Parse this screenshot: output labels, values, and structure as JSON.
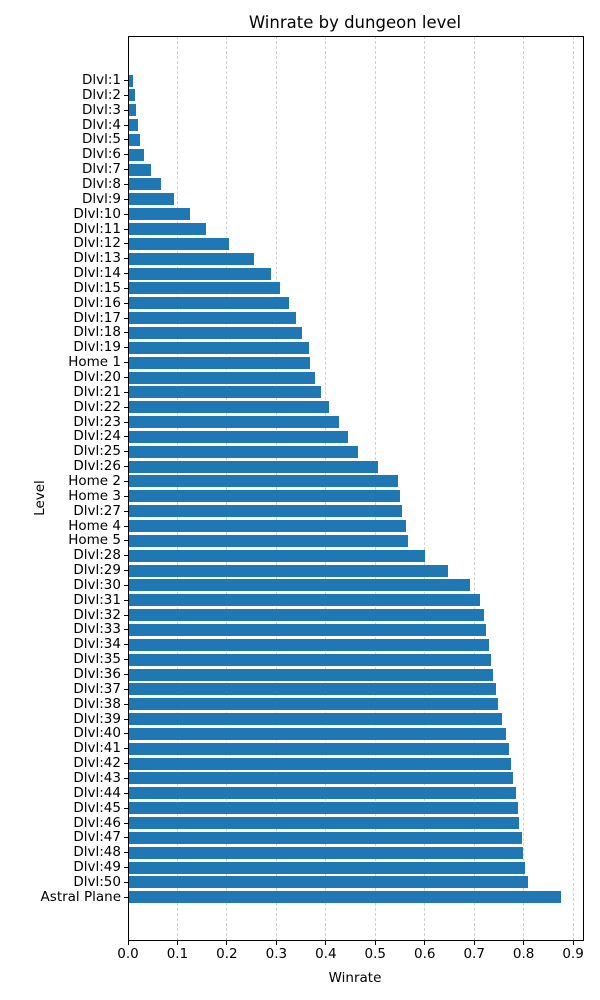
{
  "chart_data": {
    "type": "bar",
    "orientation": "horizontal",
    "title": "Winrate by dungeon level",
    "xlabel": "Winrate",
    "ylabel": "Level",
    "xlim": [
      0,
      0.92
    ],
    "xticks": [
      0.0,
      0.1,
      0.2,
      0.3,
      0.4,
      0.5,
      0.6,
      0.7,
      0.8,
      0.9
    ],
    "xtick_labels": [
      "0.0",
      "0.1",
      "0.2",
      "0.3",
      "0.4",
      "0.5",
      "0.6",
      "0.7",
      "0.8",
      "0.9"
    ],
    "grid": true,
    "legend": false,
    "bar_color": "#1f77b4",
    "grid_color": "#d0d0d0",
    "categories": [
      "Dlvl:1",
      "Dlvl:2",
      "Dlvl:3",
      "Dlvl:4",
      "Dlvl:5",
      "Dlvl:6",
      "Dlvl:7",
      "Dlvl:8",
      "Dlvl:9",
      "Dlvl:10",
      "Dlvl:11",
      "Dlvl:12",
      "Dlvl:13",
      "Dlvl:14",
      "Dlvl:15",
      "Dlvl:16",
      "Dlvl:17",
      "Dlvl:18",
      "Dlvl:19",
      "Home 1",
      "Dlvl:20",
      "Dlvl:21",
      "Dlvl:22",
      "Dlvl:23",
      "Dlvl:24",
      "Dlvl:25",
      "Dlvl:26",
      "Home 2",
      "Home 3",
      "Dlvl:27",
      "Home 4",
      "Home 5",
      "Dlvl:28",
      "Dlvl:29",
      "Dlvl:30",
      "Dlvl:31",
      "Dlvl:32",
      "Dlvl:33",
      "Dlvl:34",
      "Dlvl:35",
      "Dlvl:36",
      "Dlvl:37",
      "Dlvl:38",
      "Dlvl:39",
      "Dlvl:40",
      "Dlvl:41",
      "Dlvl:42",
      "Dlvl:43",
      "Dlvl:44",
      "Dlvl:45",
      "Dlvl:46",
      "Dlvl:47",
      "Dlvl:48",
      "Dlvl:49",
      "Dlvl:50",
      "Astral Plane"
    ],
    "values": [
      0.01,
      0.014,
      0.017,
      0.021,
      0.024,
      0.033,
      0.046,
      0.067,
      0.094,
      0.125,
      0.158,
      0.205,
      0.255,
      0.29,
      0.308,
      0.325,
      0.34,
      0.352,
      0.365,
      0.367,
      0.378,
      0.391,
      0.406,
      0.426,
      0.444,
      0.466,
      0.506,
      0.545,
      0.549,
      0.554,
      0.562,
      0.567,
      0.601,
      0.647,
      0.692,
      0.712,
      0.719,
      0.724,
      0.73,
      0.734,
      0.738,
      0.744,
      0.748,
      0.756,
      0.764,
      0.77,
      0.775,
      0.779,
      0.784,
      0.789,
      0.791,
      0.796,
      0.799,
      0.802,
      0.808,
      0.876
    ]
  }
}
